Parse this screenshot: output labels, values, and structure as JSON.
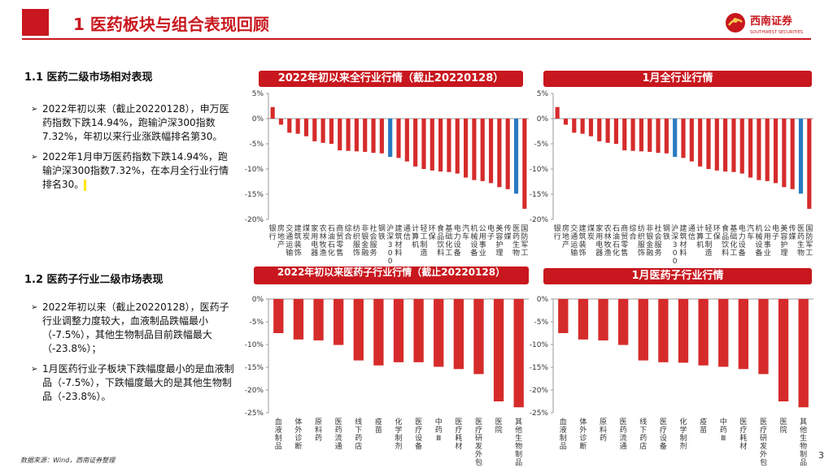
{
  "header": {
    "title": "1 医药板块与组合表现回顾",
    "logo_cn": "西南证券",
    "logo_en": "SOUTHWEST SECURITIES"
  },
  "section1": {
    "heading": "1.1 医药二级市场相对表现",
    "bullets": [
      "2022年初以来（截止20220128），申万医药指数下跌14.94%，跑输沪深300指数7.32%，年初以来行业涨跌幅排名第30。",
      "2022年1月申万医药指数下跌14.94%，跑输沪深300指数7.32%，在本月全行业行情排名30。"
    ]
  },
  "section2": {
    "heading": "1.2 医药子行业二级市场表现",
    "bullets": [
      "2022年初以来（截止20220128），医药子行业调整力度较大，血液制品跌幅最小（-7.5%），其他生物制品目前跌幅最大（-23.8%）；",
      "1月医药行业子板块下跌幅度最小的是血液制品（-7.5%），下跌幅度最大的是其他生物制品（-23.8%）。"
    ]
  },
  "footer": {
    "source": "数据来源：Wind，西南证券整理",
    "page": "3"
  },
  "colors": {
    "brand": "#c8171e",
    "bar": "#d62b2b",
    "highlight": "#2a7ac0"
  },
  "chart_data": [
    {
      "id": "c1",
      "type": "bar",
      "title": "2022年初以来全行业行情（截止20220128）",
      "ylim": [
        -20,
        5
      ],
      "yticks": [
        "5%",
        "0%",
        "-5%",
        "-10%",
        "-15%",
        "-20%"
      ],
      "categories": [
        "银行",
        "房地产",
        "交通运输",
        "建筑装饰",
        "煤炭",
        "家用电器",
        "农林牧渔",
        "石油石化",
        "商贸零售",
        "综合",
        "纺织服饰",
        "非银金融",
        "社会服务",
        "钢铁",
        "沪深300",
        "建筑材料",
        "通信",
        "计算机",
        "轻工制造",
        "环保",
        "食品饮料",
        "基础化工",
        "电力设备",
        "汽车",
        "机械设备",
        "公用事业",
        "电子",
        "美容护理",
        "传媒",
        "医药生物",
        "国防军工"
      ],
      "values": [
        2.3,
        -1.2,
        -2.8,
        -3.0,
        -3.5,
        -4.5,
        -4.8,
        -5.0,
        -6.3,
        -6.4,
        -6.5,
        -6.6,
        -6.8,
        -6.9,
        -7.6,
        -7.8,
        -8.5,
        -9.5,
        -10.0,
        -10.3,
        -10.5,
        -10.6,
        -10.9,
        -11.7,
        -12.2,
        -12.4,
        -12.8,
        -13.6,
        -14.0,
        -14.9,
        -17.9
      ],
      "highlight": [
        "沪深300",
        "医药生物"
      ]
    },
    {
      "id": "c2",
      "type": "bar",
      "title": "1月全行业行情",
      "ylim": [
        -20,
        5
      ],
      "yticks": [
        "5%",
        "0%",
        "-5%",
        "-10%",
        "-15%",
        "-20%"
      ],
      "categories": [
        "银行",
        "房地产",
        "交通运输",
        "建筑装饰",
        "煤炭",
        "家用电器",
        "农林牧渔",
        "石油石化",
        "商贸零售",
        "综合",
        "纺织服饰",
        "非银金融",
        "社会服务",
        "钢铁",
        "沪深300",
        "建筑材料",
        "通信",
        "计算机",
        "轻工制造",
        "环保",
        "食品饮料",
        "基础化工",
        "电力设备",
        "汽车",
        "机械设备",
        "公用事业",
        "电子",
        "美容护理",
        "传媒",
        "医药生物",
        "国防军工"
      ],
      "values": [
        2.3,
        -1.2,
        -2.8,
        -3.0,
        -3.5,
        -4.5,
        -4.8,
        -5.0,
        -6.3,
        -6.4,
        -6.5,
        -6.6,
        -6.8,
        -6.9,
        -7.6,
        -7.8,
        -8.5,
        -9.5,
        -10.0,
        -10.3,
        -10.5,
        -10.6,
        -10.9,
        -11.7,
        -12.2,
        -12.4,
        -12.8,
        -13.6,
        -14.0,
        -14.9,
        -17.9
      ],
      "highlight": [
        "沪深300",
        "医药生物"
      ]
    },
    {
      "id": "c3",
      "type": "bar",
      "title": "2022年初以来医药子行业行情（截止20220128）",
      "ylim": [
        -25,
        0
      ],
      "yticks": [
        "0%",
        "-5%",
        "-10%",
        "-15%",
        "-20%",
        "-25%"
      ],
      "categories": [
        "血液制品",
        "体外诊断",
        "原料药",
        "医药流通",
        "线下药店",
        "疫苗",
        "化学制剂",
        "医疗设备",
        "中药Ⅲ",
        "医疗耗材",
        "医疗研发外包",
        "医院",
        "其他生物制品"
      ],
      "values": [
        -7.5,
        -8.9,
        -9.1,
        -10.1,
        -13.5,
        -14.6,
        -13.9,
        -13.9,
        -14.9,
        -15.4,
        -16.5,
        -22.5,
        -23.8
      ],
      "highlight": []
    },
    {
      "id": "c4",
      "type": "bar",
      "title": "1月医药子行业行情",
      "ylim": [
        -25,
        0
      ],
      "yticks": [
        "0%",
        "-5%",
        "-10%",
        "-15%",
        "-20%",
        "-25%"
      ],
      "categories": [
        "血液制品",
        "体外诊断",
        "原料药",
        "医药流通",
        "线下药店",
        "医疗设备",
        "化学制剂",
        "疫苗",
        "中药Ⅲ",
        "医疗耗材",
        "医疗研发外包",
        "医院",
        "其他生物制品"
      ],
      "values": [
        -7.5,
        -8.9,
        -9.1,
        -10.1,
        -13.5,
        -13.9,
        -14.0,
        -14.6,
        -14.9,
        -15.4,
        -16.5,
        -22.5,
        -23.8
      ],
      "highlight": []
    }
  ]
}
